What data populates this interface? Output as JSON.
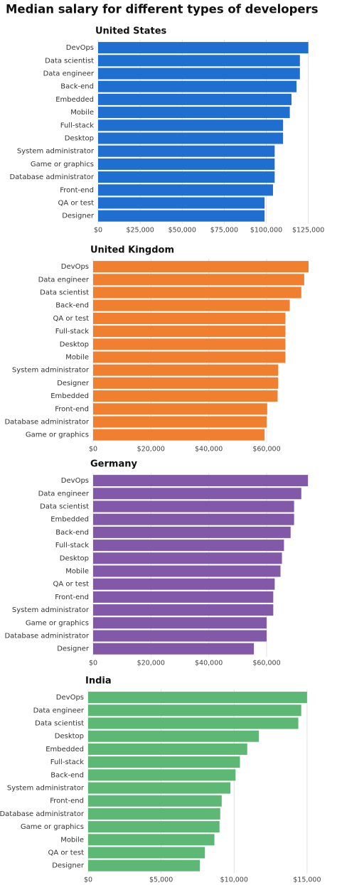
{
  "title": "Median salary for different types of developers",
  "chart_data": [
    {
      "type": "barh",
      "title": "United States",
      "color": "#1f6fd1",
      "grid": true,
      "categories": [
        "DevOps",
        "Data scientist",
        "Data engineer",
        "Back-end",
        "Embedded",
        "Mobile",
        "Full-stack",
        "Desktop",
        "System administrator",
        "Game or graphics",
        "Database administrator",
        "Front-end",
        "QA or test",
        "Designer"
      ],
      "values": [
        125000,
        120000,
        120000,
        118000,
        115000,
        114000,
        110000,
        110000,
        105000,
        105000,
        105000,
        104000,
        99000,
        99000
      ],
      "xlim": [
        0,
        126000
      ],
      "xticks": [
        {
          "value": 0,
          "label": "$0"
        },
        {
          "value": 25000,
          "label": "$25,000"
        },
        {
          "value": 50000,
          "label": "$50,000"
        },
        {
          "value": 75000,
          "label": "$75,000"
        },
        {
          "value": 100000,
          "label": "$100,000"
        },
        {
          "value": 125000,
          "label": "$125,000"
        }
      ]
    },
    {
      "type": "barh",
      "title": "United Kingdom",
      "color": "#f07f2f",
      "grid": true,
      "categories": [
        "DevOps",
        "Data engineer",
        "Data scientist",
        "Back-end",
        "QA or test",
        "Full-stack",
        "Desktop",
        "Mobile",
        "System administrator",
        "Designer",
        "Embedded",
        "Front-end",
        "Database administrator",
        "Game or graphics"
      ],
      "values": [
        74500,
        73000,
        72000,
        68000,
        66500,
        66500,
        66500,
        66500,
        64000,
        64000,
        63800,
        60200,
        60000,
        59300
      ],
      "xlim": [
        0,
        75000
      ],
      "xticks": [
        {
          "value": 0,
          "label": "$0"
        },
        {
          "value": 20000,
          "label": "$20,000"
        },
        {
          "value": 40000,
          "label": "$40,000"
        },
        {
          "value": 60000,
          "label": "$60,000"
        }
      ]
    },
    {
      "type": "barh",
      "title": "Germany",
      "color": "#8258a8",
      "grid": true,
      "categories": [
        "DevOps",
        "Data engineer",
        "Data scientist",
        "Embedded",
        "Back-end",
        "Full-stack",
        "Desktop",
        "Mobile",
        "QA or test",
        "Front-end",
        "System administrator",
        "Game or graphics",
        "Database administrator",
        "Designer"
      ],
      "values": [
        74300,
        72000,
        69500,
        69500,
        68300,
        66000,
        65300,
        64800,
        62800,
        62300,
        62300,
        60000,
        60000,
        55600
      ],
      "xlim": [
        0,
        75000
      ],
      "xticks": [
        {
          "value": 0,
          "label": "$0"
        },
        {
          "value": 20000,
          "label": "$20,000"
        },
        {
          "value": 40000,
          "label": "$40,000"
        },
        {
          "value": 60000,
          "label": "$60,000"
        }
      ]
    },
    {
      "type": "barh",
      "title": "India",
      "color": "#5cb874",
      "grid": true,
      "categories": [
        "DevOps",
        "Data engineer",
        "Data scientist",
        "Desktop",
        "Embedded",
        "Full-stack",
        "Back-end",
        "System administrator",
        "Front-end",
        "Database administrator",
        "Game or graphics",
        "Mobile",
        "QA or test",
        "Designer"
      ],
      "values": [
        15000,
        14600,
        14400,
        11700,
        10900,
        10400,
        10100,
        9750,
        9150,
        9050,
        9000,
        8650,
        8000,
        7650
      ],
      "xlim": [
        0,
        15200
      ],
      "xticks": [
        {
          "value": 0,
          "label": "$0"
        },
        {
          "value": 5000,
          "label": "$5,000"
        },
        {
          "value": 10000,
          "label": "$10,000"
        },
        {
          "value": 15000,
          "label": "$15,000"
        }
      ]
    }
  ]
}
